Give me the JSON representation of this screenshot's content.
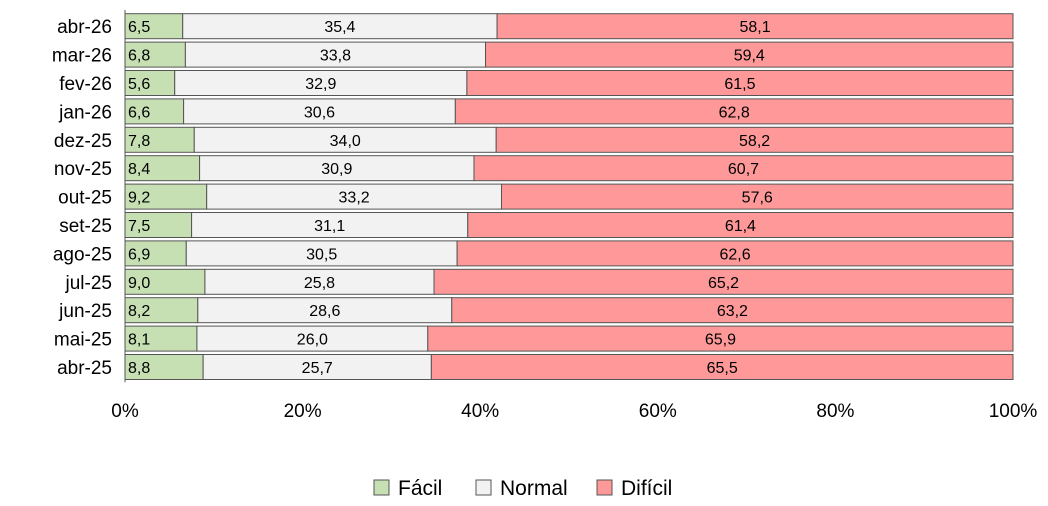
{
  "chart_data": {
    "type": "bar",
    "orientation": "horizontal",
    "stacked": "percent",
    "categories": [
      "abr-26",
      "mar-26",
      "fev-26",
      "jan-26",
      "dez-25",
      "nov-25",
      "out-25",
      "set-25",
      "ago-25",
      "jul-25",
      "jun-25",
      "mai-25",
      "abr-25"
    ],
    "series": [
      {
        "name": "Fácil",
        "color": "#c6e0b4",
        "values": [
          6.5,
          6.8,
          5.6,
          6.6,
          7.8,
          8.4,
          9.2,
          7.5,
          6.9,
          9.0,
          8.2,
          8.1,
          8.8
        ],
        "labels": [
          "6,5",
          "6,8",
          "5,6",
          "6,6",
          "7,8",
          "8,4",
          "9,2",
          "7,5",
          "6,9",
          "9,0",
          "8,2",
          "8,1",
          "8,8"
        ]
      },
      {
        "name": "Normal",
        "color": "#f2f2f2",
        "values": [
          35.4,
          33.8,
          32.9,
          30.6,
          34.0,
          30.9,
          33.2,
          31.1,
          30.5,
          25.8,
          28.6,
          26.0,
          25.7
        ],
        "labels": [
          "35,4",
          "33,8",
          "32,9",
          "30,6",
          "34,0",
          "30,9",
          "33,2",
          "31,1",
          "30,5",
          "25,8",
          "28,6",
          "26,0",
          "25,7"
        ]
      },
      {
        "name": "Difícil",
        "color": "#ff9999",
        "values": [
          58.1,
          59.4,
          61.5,
          62.8,
          58.2,
          60.7,
          57.6,
          61.4,
          62.6,
          65.2,
          63.2,
          65.9,
          65.5
        ],
        "labels": [
          "58,1",
          "59,4",
          "61,5",
          "62,8",
          "58,2",
          "60,7",
          "57,6",
          "61,4",
          "62,6",
          "65,2",
          "63,2",
          "65,9",
          "65,5"
        ]
      }
    ],
    "x_ticks": [
      "0%",
      "20%",
      "40%",
      "60%",
      "80%",
      "100%"
    ],
    "xlim": [
      0,
      100
    ],
    "grid": false,
    "legend_position": "bottom",
    "title": "",
    "xlabel": "",
    "ylabel": ""
  }
}
